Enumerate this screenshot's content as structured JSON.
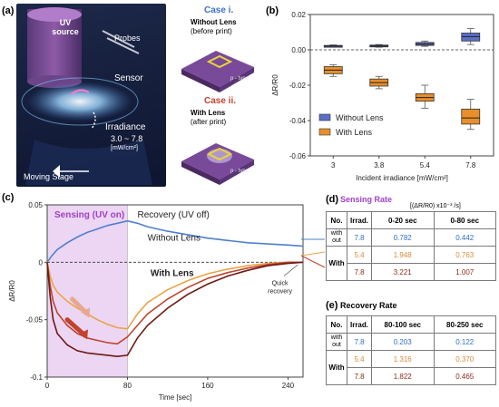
{
  "panel_a": {
    "label": "(a)",
    "uv_source": "UV source",
    "probes": "Probes",
    "sensor": "Sensor",
    "irradiance": "Irradiance",
    "irradiance_range": "3.0 ~ 7.8",
    "irradiance_unit": "[mW/cm²]",
    "moving_stage": "Moving Stage",
    "case1_title": "Case i.",
    "case1_sub1": "Without Lens",
    "case1_sub2": "(before print)",
    "case2_title": "Case ii.",
    "case2_sub1": "With Lens",
    "case2_sub2": "(after print)",
    "chip_label1": "p - type",
    "chip_label2": "p - type"
  },
  "chart_data": [
    {
      "type": "box",
      "panel": "(b)",
      "categories": [
        "3",
        "3.8",
        "5.4",
        "7.8"
      ],
      "xlabel": "Incident irradiance [mW/cm²]",
      "ylabel": "ΔR/R0",
      "ylim": [
        -0.06,
        0.02
      ],
      "yticks": [
        "0.02",
        "0.00",
        "-0.02",
        "-0.04",
        "-0.06"
      ],
      "legend_position": "center-left",
      "series": [
        {
          "name": "Without Lens",
          "color": "#5b6fc7",
          "boxes": [
            {
              "min": 0.0015,
              "q1": 0.0017,
              "median": 0.0021,
              "q3": 0.0025,
              "max": 0.0028
            },
            {
              "min": 0.0015,
              "q1": 0.0018,
              "median": 0.0022,
              "q3": 0.0027,
              "max": 0.003
            },
            {
              "min": 0.002,
              "q1": 0.0025,
              "median": 0.0033,
              "q3": 0.0042,
              "max": 0.005
            },
            {
              "min": 0.003,
              "q1": 0.005,
              "median": 0.0075,
              "q3": 0.0095,
              "max": 0.012
            }
          ]
        },
        {
          "name": "With Lens",
          "color": "#e88f2a",
          "boxes": [
            {
              "min": -0.015,
              "q1": -0.0135,
              "median": -0.0115,
              "q3": -0.0095,
              "max": -0.0085
            },
            {
              "min": -0.022,
              "q1": -0.0205,
              "median": -0.0185,
              "q3": -0.0165,
              "max": -0.015
            },
            {
              "min": -0.033,
              "q1": -0.029,
              "median": -0.027,
              "q3": -0.0248,
              "max": -0.02
            },
            {
              "min": -0.045,
              "q1": -0.042,
              "median": -0.0385,
              "q3": -0.0335,
              "max": -0.028
            }
          ]
        }
      ]
    },
    {
      "type": "line",
      "panel": "(c)",
      "xlabel": "Time [sec]",
      "ylabel": "ΔR/R0",
      "xlim": [
        0,
        255
      ],
      "ylim": [
        -0.1,
        0.05
      ],
      "xticks": [
        "0",
        "80",
        "160",
        "240"
      ],
      "yticks": [
        "0.05",
        "0",
        "-0.05",
        "-0.1"
      ],
      "regions": [
        {
          "label": "Sensing (UV on)",
          "x": [
            0,
            80
          ]
        },
        {
          "label": "Recovery (UV off)",
          "x": [
            80,
            255
          ]
        }
      ],
      "annotations": [
        "Without Lens",
        "With Lens",
        "Quick recovery"
      ],
      "series": [
        {
          "color": "#4f7fd0",
          "x": [
            0,
            5,
            10,
            20,
            30,
            40,
            50,
            60,
            70,
            80,
            90,
            100,
            120,
            140,
            160,
            180,
            200,
            220,
            240,
            255
          ],
          "y": [
            0,
            0.006,
            0.011,
            0.017,
            0.022,
            0.026,
            0.029,
            0.032,
            0.034,
            0.036,
            0.034,
            0.031,
            0.027,
            0.024,
            0.021,
            0.019,
            0.017,
            0.016,
            0.015,
            0.014
          ]
        },
        {
          "color": "#e8a448",
          "x": [
            0,
            3,
            6,
            10,
            20,
            30,
            40,
            50,
            60,
            70,
            80,
            90,
            100,
            120,
            140,
            160,
            180,
            200,
            220,
            240,
            255
          ],
          "y": [
            0,
            -0.012,
            -0.02,
            -0.026,
            -0.034,
            -0.04,
            -0.045,
            -0.05,
            -0.054,
            -0.057,
            -0.058,
            -0.045,
            -0.035,
            -0.024,
            -0.016,
            -0.01,
            -0.006,
            -0.003,
            -0.001,
            0,
            0
          ]
        },
        {
          "color": "#c0432e",
          "x": [
            0,
            3,
            6,
            10,
            20,
            30,
            40,
            50,
            60,
            70,
            80,
            90,
            100,
            120,
            140,
            160,
            180,
            200,
            220,
            240,
            255
          ],
          "y": [
            0,
            -0.02,
            -0.034,
            -0.044,
            -0.055,
            -0.062,
            -0.066,
            -0.068,
            -0.07,
            -0.071,
            -0.065,
            -0.055,
            -0.045,
            -0.032,
            -0.022,
            -0.014,
            -0.009,
            -0.005,
            -0.002,
            0,
            0
          ]
        },
        {
          "color": "#6e1a12",
          "x": [
            0,
            3,
            6,
            10,
            20,
            30,
            40,
            50,
            60,
            70,
            80,
            90,
            100,
            120,
            140,
            160,
            180,
            200,
            220,
            240,
            255
          ],
          "y": [
            0,
            -0.03,
            -0.05,
            -0.062,
            -0.072,
            -0.077,
            -0.079,
            -0.08,
            -0.081,
            -0.082,
            -0.081,
            -0.066,
            -0.055,
            -0.04,
            -0.028,
            -0.019,
            -0.012,
            -0.007,
            -0.003,
            -0.001,
            0
          ]
        }
      ]
    }
  ],
  "table_d": {
    "label": "(d)",
    "title": "Sensing Rate",
    "unit": "[(ΔR/R0) x10⁻³ /s]",
    "headers": [
      "No.",
      "Irrad.",
      "0-20 sec",
      "0-80 sec"
    ],
    "group_without_1": "with",
    "group_without_2": "out",
    "group_with": "With",
    "rows": [
      {
        "irrad": "7.8",
        "a": "0.782",
        "b": "0.442",
        "color": "#2f6fc9"
      },
      {
        "irrad": "5.4",
        "a": "1.948",
        "b": "0.763",
        "color": "#d98a3a"
      },
      {
        "irrad": "7.8",
        "a": "3.221",
        "b": "1.007",
        "color": "#8b2a1a"
      }
    ]
  },
  "table_e": {
    "label": "(e)",
    "title": "Recovery Rate",
    "headers": [
      "No.",
      "Irrad.",
      "80-100 sec",
      "80-250 sec"
    ],
    "group_without_1": "with",
    "group_without_2": "out",
    "group_with": "With",
    "rows": [
      {
        "irrad": "7.8",
        "a": "0.203",
        "b": "0.122",
        "color": "#2f6fc9"
      },
      {
        "irrad": "5.4",
        "a": "1.316",
        "b": "0.370",
        "color": "#d98a3a"
      },
      {
        "irrad": "7.8",
        "a": "1.822",
        "b": "0.465",
        "color": "#8b2a1a"
      }
    ]
  }
}
